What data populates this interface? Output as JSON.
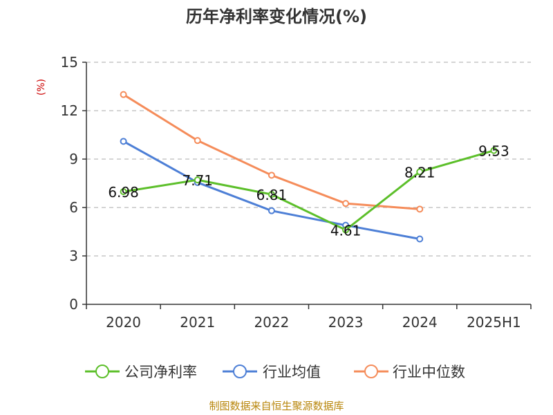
{
  "chart_data": {
    "type": "line",
    "title": "历年净利率变化情况(%)",
    "ylabel": "(%)",
    "xlabel": "",
    "categories": [
      "2020",
      "2021",
      "2022",
      "2023",
      "2024",
      "2025H1"
    ],
    "yticks": [
      "0",
      "3",
      "6",
      "9",
      "12",
      "15"
    ],
    "ylim": [
      0,
      15
    ],
    "grid": true,
    "legend_position": "bottom",
    "series": [
      {
        "name": "公司净利率",
        "color": "#5cbf2a",
        "values": [
          6.98,
          7.71,
          6.81,
          4.61,
          8.21,
          9.53
        ],
        "labels": [
          "6.98",
          "7.71",
          "6.81",
          "4.61",
          "8.21",
          "9.53"
        ]
      },
      {
        "name": "行业均值",
        "color": "#4d7fd6",
        "values": [
          10.1,
          7.55,
          5.8,
          4.9,
          4.05,
          null
        ]
      },
      {
        "name": "行业中位数",
        "color": "#f58c5a",
        "values": [
          13.0,
          10.15,
          8.0,
          6.25,
          5.9,
          null
        ]
      }
    ]
  },
  "source": "制图数据来自恒生聚源数据库"
}
